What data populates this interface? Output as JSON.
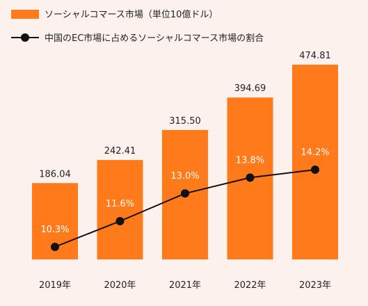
{
  "chart_data": {
    "type": "bar",
    "categories": [
      "2019年",
      "2020年",
      "2021年",
      "2022年",
      "2023年"
    ],
    "series": [
      {
        "name": "ソーシャルコマース市場（単位10億ドル）",
        "type": "bar",
        "values": [
          186.04,
          242.41,
          315.5,
          394.69,
          474.81
        ],
        "labels": [
          "186.04",
          "242.41",
          "315.50",
          "394.69",
          "474.81"
        ],
        "color": "#ff7a1a"
      },
      {
        "name": "中国のEC市場に占めるソーシャルコマース市場の割合",
        "type": "line",
        "values": [
          10.3,
          11.6,
          13.0,
          13.8,
          14.2
        ],
        "labels": [
          "10.3%",
          "11.6%",
          "13.0%",
          "13.8%",
          "14.2%"
        ],
        "color": "#111111"
      }
    ],
    "ylim": [
      0,
      500
    ],
    "grid": false,
    "legend_position": "top-left",
    "background": "#fdf1ee"
  }
}
